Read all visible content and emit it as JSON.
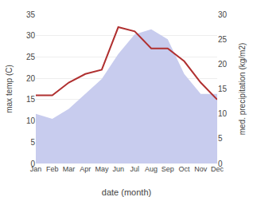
{
  "chart_data": {
    "type": "line",
    "xlabel": "date (month)",
    "ylabel": "max temp (C)",
    "y2label": "med. precipitation (kg/m2)",
    "categories": [
      "Jan",
      "Feb",
      "Mar",
      "Apr",
      "May",
      "Jun",
      "Jul",
      "Aug",
      "Sep",
      "Oct",
      "Nov",
      "Dec"
    ],
    "series": [
      {
        "type": "area",
        "axis": "y2",
        "color": "#c8ccee",
        "values": [
          10,
          9,
          11,
          14,
          17,
          22,
          26,
          27,
          25,
          18,
          14,
          14
        ]
      },
      {
        "type": "line",
        "color": "#b03030",
        "values": [
          16,
          16,
          19,
          21,
          22,
          32,
          31,
          27,
          27,
          24,
          19,
          15
        ]
      }
    ],
    "ylim": [
      0,
      35
    ],
    "yticks": [
      0,
      5,
      10,
      15,
      20,
      25,
      30,
      35
    ],
    "y2lim": [
      0,
      30
    ],
    "y2ticks": [
      0,
      5,
      10,
      15,
      20,
      25,
      30
    ],
    "grid": true
  }
}
